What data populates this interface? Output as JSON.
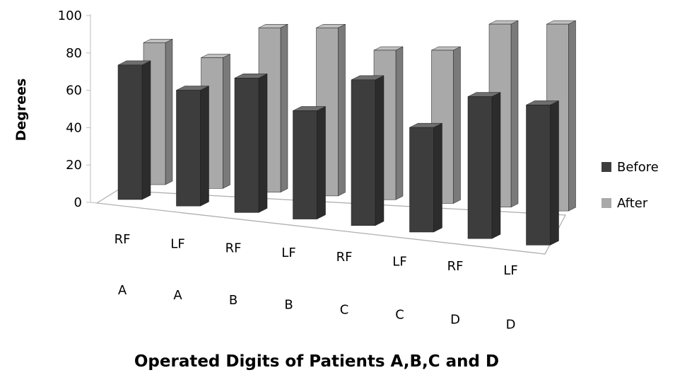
{
  "chart_data": {
    "type": "bar",
    "view": "3d-clustered-columns",
    "ylabel": "Degrees",
    "xlabel": "Operated Digits of Patients A,B,C and D",
    "ylim": [
      0,
      100
    ],
    "y_ticks": [
      "0",
      "20",
      "40",
      "60",
      "80",
      "100"
    ],
    "categories": [
      {
        "digit": "RF",
        "patient": "A"
      },
      {
        "digit": "LF",
        "patient": "A"
      },
      {
        "digit": "RF",
        "patient": "B"
      },
      {
        "digit": "LF",
        "patient": "B"
      },
      {
        "digit": "RF",
        "patient": "C"
      },
      {
        "digit": "LF",
        "patient": "C"
      },
      {
        "digit": "RF",
        "patient": "D"
      },
      {
        "digit": "LF",
        "patient": "D"
      }
    ],
    "series": [
      {
        "name": "Before",
        "color": "#3d3d3d",
        "values": [
          72,
          62,
          72,
          58,
          78,
          56,
          76,
          75
        ]
      },
      {
        "name": "After",
        "color": "#a9a9a9",
        "values": [
          76,
          70,
          88,
          90,
          80,
          82,
          98,
          100
        ]
      }
    ],
    "legend_position": "right",
    "gridlines": false
  }
}
